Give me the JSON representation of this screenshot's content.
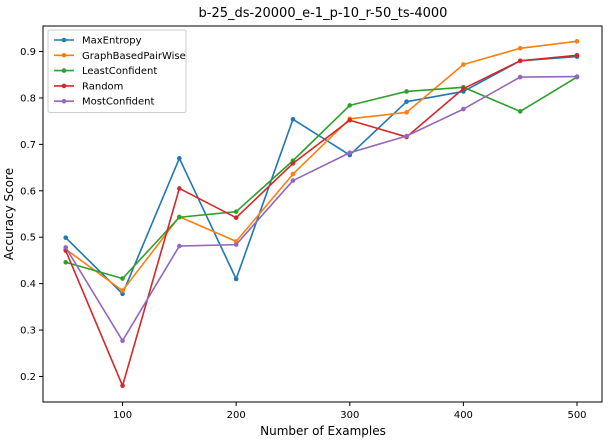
{
  "chart_data": {
    "type": "line",
    "title": "b-25_ds-20000_e-1_p-10_r-50_ts-4000",
    "xlabel": "Number of Examples",
    "ylabel": "Accuracy Score",
    "x": [
      50,
      100,
      150,
      200,
      250,
      300,
      350,
      400,
      450,
      500
    ],
    "xlim": [
      30,
      522
    ],
    "ylim": [
      0.145,
      0.955
    ],
    "xticks": [
      100,
      200,
      300,
      400,
      500
    ],
    "yticks": [
      0.2,
      0.3,
      0.4,
      0.5,
      0.6,
      0.7,
      0.8,
      0.9
    ],
    "grid": false,
    "legend_position": "top-left",
    "series": [
      {
        "name": "MaxEntropy",
        "color": "#1f77b4",
        "values": [
          0.499,
          0.378,
          0.67,
          0.41,
          0.754,
          0.677,
          0.792,
          0.814,
          0.88,
          0.889
        ]
      },
      {
        "name": "GraphBasedPairWise",
        "color": "#ff7f0e",
        "values": [
          0.474,
          0.385,
          0.544,
          0.491,
          0.636,
          0.755,
          0.769,
          0.872,
          0.907,
          0.922
        ]
      },
      {
        "name": "LeastConfident",
        "color": "#2ca02c",
        "values": [
          0.446,
          0.411,
          0.543,
          0.555,
          0.665,
          0.784,
          0.814,
          0.823,
          0.771,
          0.845
        ]
      },
      {
        "name": "Random",
        "color": "#d62728",
        "values": [
          0.471,
          0.18,
          0.605,
          0.542,
          0.659,
          0.752,
          0.716,
          0.82,
          0.88,
          0.892
        ]
      },
      {
        "name": "MostConfident",
        "color": "#9467bd",
        "values": [
          0.478,
          0.277,
          0.481,
          0.484,
          0.622,
          0.682,
          0.718,
          0.776,
          0.845,
          0.846
        ]
      }
    ]
  }
}
